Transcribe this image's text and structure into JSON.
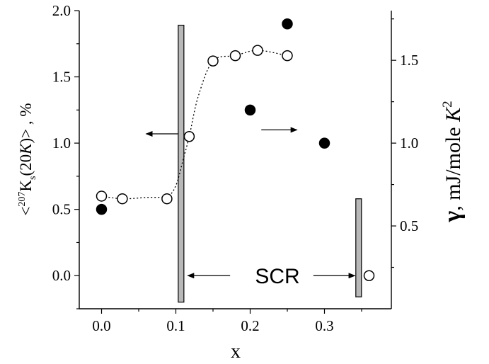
{
  "chart_data": {
    "type": "scatter",
    "xlabel": "x",
    "ylabel_left": {
      "open": "<",
      "superscript_mass": "207",
      "main": "K",
      "subscript": "s",
      "paren_open": "(20",
      "italic_unit": "K",
      "paren_close": ")> , %"
    },
    "ylabel_right": {
      "gamma": "γ",
      "units": ", mJ/mole ",
      "italic_unit": "K",
      "superscript": "2"
    },
    "xlim": [
      -0.03,
      0.39
    ],
    "ylim_left": [
      -0.25,
      2.0
    ],
    "ylim_right": [
      0.0,
      1.8
    ],
    "x_ticks": [
      "0.0",
      "0.1",
      "0.2",
      "0.3"
    ],
    "y_ticks_left": [
      "0.0",
      "0.5",
      "1.0",
      "1.5",
      "2.0"
    ],
    "y_ticks_right": [
      "0.5",
      "1.0",
      "1.5"
    ],
    "series": [
      {
        "marker": "open-circle",
        "axis": "left",
        "x": [
          0.0,
          0.028,
          0.088,
          0.118,
          0.15,
          0.18,
          0.21,
          0.25,
          0.36
        ],
        "y": [
          0.6,
          0.58,
          0.58,
          1.05,
          1.62,
          1.66,
          1.7,
          1.66,
          0.0
        ]
      },
      {
        "marker": "filled-circle",
        "axis": "right",
        "x": [
          0.0,
          0.2,
          0.25,
          0.3
        ],
        "y": [
          0.6,
          1.2,
          1.72,
          1.0
        ]
      }
    ],
    "fit_curve": {
      "style": "dotted",
      "x": [
        0.0,
        0.028,
        0.06,
        0.088,
        0.1,
        0.11,
        0.118,
        0.13,
        0.15,
        0.18,
        0.21,
        0.25
      ],
      "y": [
        0.6,
        0.58,
        0.59,
        0.6,
        0.68,
        0.88,
        1.05,
        1.35,
        1.62,
        1.66,
        1.7,
        1.66
      ]
    },
    "bars": [
      {
        "x": 0.107,
        "y_from": -0.2,
        "y_to": 1.89,
        "color": "#b8b8b8"
      },
      {
        "x": 0.346,
        "y_from": -0.16,
        "y_to": 0.58,
        "color": "#b8b8b8"
      }
    ],
    "annotations": {
      "scr_label": "SCR",
      "axis_arrows": [
        {
          "from_x": 0.103,
          "to_x": 0.06,
          "y": 1.07
        },
        {
          "from_x": 0.215,
          "to_x": 0.263,
          "y": 1.1
        }
      ],
      "scr_arrows": [
        {
          "from_x": 0.173,
          "to_x": 0.116,
          "y": 0.0
        },
        {
          "from_x": 0.285,
          "to_x": 0.341,
          "y": 0.0
        }
      ]
    }
  }
}
